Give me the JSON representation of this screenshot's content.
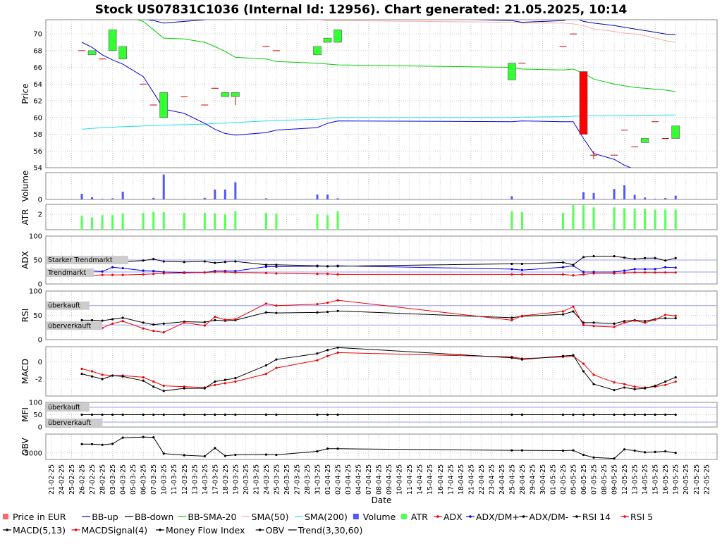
{
  "chart_data": {
    "type": "line",
    "title": "Stock US07831C1036 (Internal Id: 12956). Chart generated: 21.05.2025, 10:14",
    "xlabel": "Date",
    "x_ticks": [
      "21-02-25",
      "24-02-25",
      "25-02-25",
      "26-02-25",
      "27-02-25",
      "28-02-25",
      "03-03-25",
      "04-03-25",
      "05-03-25",
      "06-03-25",
      "07-03-25",
      "10-03-25",
      "11-03-25",
      "12-03-25",
      "13-03-25",
      "14-03-25",
      "17-03-25",
      "18-03-25",
      "19-03-25",
      "20-03-25",
      "21-03-25",
      "24-03-25",
      "25-03-25",
      "26-03-25",
      "27-03-25",
      "28-03-25",
      "31-03-25",
      "01-04-25",
      "02-04-25",
      "03-04-25",
      "04-04-25",
      "07-04-25",
      "08-04-25",
      "09-04-25",
      "10-04-25",
      "11-04-25",
      "14-04-25",
      "15-04-25",
      "16-04-25",
      "17-04-25",
      "18-04-25",
      "21-04-25",
      "22-04-25",
      "23-04-25",
      "24-04-25",
      "25-04-25",
      "28-04-25",
      "29-04-25",
      "30-04-25",
      "01-05-25",
      "02-05-25",
      "05-05-25",
      "06-05-25",
      "07-05-25",
      "08-05-25",
      "09-05-25",
      "12-05-25",
      "13-05-25",
      "14-05-25",
      "15-05-25",
      "16-05-25",
      "19-05-25",
      "20-05-25",
      "21-05-25",
      "22-05-25"
    ],
    "dates": [
      "26-02-25",
      "27-02-25",
      "28-02-25",
      "03-03-25",
      "04-03-25",
      "06-03-25",
      "07-03-25",
      "10-03-25",
      "12-03-25",
      "14-03-25",
      "17-03-25",
      "18-03-25",
      "19-03-25",
      "24-03-25",
      "25-03-25",
      "31-03-25",
      "01-04-25",
      "02-04-25",
      "25-04-25",
      "28-04-25",
      "02-05-25",
      "05-05-25",
      "06-05-25",
      "07-05-25",
      "09-05-25",
      "12-05-25",
      "13-05-25",
      "14-05-25",
      "15-05-25",
      "16-05-25",
      "19-05-25"
    ],
    "panels": {
      "price": {
        "ylabel": "Price",
        "ylim": [
          54,
          71.7
        ],
        "yticks": [
          54,
          56,
          58,
          60,
          62,
          64,
          66,
          68,
          70
        ],
        "open": [
          68.0,
          67.5,
          67.0,
          68.0,
          67.0,
          64.0,
          61.5,
          60.0,
          62.5,
          61.5,
          63.5,
          62.5,
          62.5,
          68.5,
          68.0,
          67.5,
          69.0,
          69.0,
          64.5,
          66.5,
          68.5,
          70.0,
          65.5,
          55.5,
          55.5,
          58.5,
          56.5,
          57.0,
          59.5,
          57.5,
          57.5
        ],
        "close": [
          68.0,
          68.0,
          67.0,
          70.5,
          68.5,
          64.0,
          61.5,
          63.0,
          62.5,
          61.5,
          63.5,
          63.0,
          63.0,
          68.5,
          68.0,
          68.5,
          69.5,
          70.5,
          66.5,
          66.5,
          68.5,
          70.0,
          58.0,
          55.5,
          55.5,
          58.5,
          56.5,
          57.5,
          59.5,
          57.5,
          59.0
        ],
        "high": [
          68.0,
          68.0,
          67.0,
          70.5,
          68.5,
          64.0,
          61.5,
          63.0,
          62.5,
          61.5,
          63.5,
          63.0,
          63.0,
          68.5,
          68.0,
          68.5,
          69.5,
          70.5,
          66.5,
          66.5,
          68.5,
          70.0,
          65.5,
          56.0,
          55.5,
          58.5,
          56.5,
          57.5,
          59.5,
          57.5,
          59.0
        ],
        "low": [
          68.0,
          67.5,
          67.0,
          68.0,
          67.0,
          64.0,
          61.5,
          60.0,
          62.5,
          61.5,
          63.5,
          62.5,
          61.5,
          68.5,
          68.0,
          67.5,
          69.0,
          69.0,
          64.5,
          66.5,
          68.5,
          70.0,
          58.0,
          55.0,
          55.5,
          58.5,
          56.5,
          57.0,
          59.5,
          57.5,
          57.5
        ],
        "bb_up": [
          69.0,
          68.4,
          67.5,
          66.9,
          66.4,
          64.9,
          63.0,
          61.0,
          60.5,
          59.3,
          58.6,
          58.1,
          57.9,
          58.2,
          58.5,
          58.8,
          59.3,
          59.6,
          59.5,
          59.6,
          59.5,
          59.5,
          57.5,
          55.7,
          55.0,
          54.3,
          53.8,
          53.5,
          53.3,
          53.2,
          53.1
        ],
        "bb_down": [
          72.8,
          72.6,
          72.4,
          72.2,
          72.0,
          71.8,
          71.6,
          71.3,
          71.5,
          71.7,
          71.9,
          72.0,
          72.0,
          72.1,
          72.3,
          72.2,
          72.0,
          72.2,
          71.6,
          71.4,
          71.6,
          72.0,
          71.5,
          71.3,
          71.0,
          70.8,
          70.6,
          70.4,
          70.2,
          70.0,
          69.9
        ],
        "bb_sma20": [
          73.5,
          73.2,
          72.9,
          72.6,
          72.2,
          71.5,
          70.5,
          69.5,
          69.4,
          69.0,
          68.5,
          67.9,
          67.2,
          67.0,
          66.7,
          66.5,
          66.4,
          66.3,
          66.0,
          65.8,
          65.7,
          65.8,
          65.3,
          64.6,
          64.0,
          63.8,
          63.6,
          63.5,
          63.4,
          63.3,
          63.1
        ],
        "sma50": [
          73.0,
          72.9,
          72.8,
          72.7,
          72.6,
          72.4,
          72.3,
          72.2,
          72.1,
          72.0,
          71.9,
          71.8,
          71.7,
          71.8,
          71.8,
          71.7,
          71.6,
          71.6,
          71.4,
          71.3,
          71.3,
          71.2,
          71.0,
          70.6,
          70.3,
          70.1,
          70.0,
          69.8,
          69.5,
          69.2,
          69.0
        ],
        "sma200": [
          58.6,
          58.7,
          58.8,
          58.85,
          58.9,
          59.0,
          59.05,
          59.1,
          59.15,
          59.2,
          59.3,
          59.35,
          59.4,
          59.6,
          59.65,
          59.8,
          59.9,
          60.0,
          60.0,
          60.05,
          60.1,
          60.15,
          60.2,
          60.2,
          60.2,
          60.25,
          60.25,
          60.25,
          60.28,
          60.3,
          60.3
        ]
      },
      "volume": {
        "ylabel": "Volume",
        "yticks": [
          0
        ],
        "values": [
          0.21,
          0.08,
          0.02,
          0.04,
          0.29,
          0.0,
          0.06,
          0.93,
          0.01,
          0.06,
          0.37,
          0.37,
          0.64,
          0.04,
          0.0,
          0.18,
          0.18,
          0.04,
          0.12,
          0.0,
          0.0,
          0.0,
          0.27,
          0.24,
          0.39,
          0.53,
          0.17,
          0.07,
          0.02,
          0.05,
          0.14
        ]
      },
      "atr": {
        "ylabel": "ATR",
        "yticks": [
          2
        ],
        "values": [
          1.8,
          1.6,
          1.9,
          1.9,
          2.1,
          2.2,
          2.3,
          2.3,
          2.2,
          2.2,
          2.1,
          2.0,
          2.4,
          2.2,
          2.1,
          2.0,
          1.9,
          2.4,
          2.4,
          2.3,
          2.2,
          3.2,
          3.2,
          2.9,
          2.9,
          2.8,
          2.7,
          2.7,
          2.6,
          2.6,
          2.6
        ]
      },
      "adx": {
        "ylabel": "ADX",
        "yticks": [
          0,
          50,
          100
        ],
        "annotations": [
          "Starker Trendmarkt",
          "Trendmarkt"
        ],
        "ref_lines": [
          50,
          25
        ],
        "adx": [
          17,
          18,
          19,
          19,
          19,
          20,
          21,
          22,
          23,
          24,
          25,
          25,
          24,
          23,
          22,
          21,
          21,
          20,
          20,
          20,
          20,
          18,
          20,
          22,
          22,
          23,
          24,
          24,
          24,
          24,
          24
        ],
        "dm_plus": [
          28,
          27,
          26,
          35,
          33,
          28,
          27,
          25,
          24,
          24,
          27,
          27,
          27,
          36,
          36,
          37,
          37,
          38,
          31,
          29,
          35,
          38,
          25,
          25,
          25,
          28,
          31,
          31,
          31,
          35,
          34
        ],
        "dm_minus": [
          44,
          46,
          45,
          45,
          46,
          49,
          52,
          47,
          46,
          47,
          44,
          46,
          47,
          40,
          40,
          38,
          37,
          37,
          42,
          42,
          45,
          40,
          56,
          58,
          58,
          55,
          52,
          54,
          54,
          49,
          54
        ]
      },
      "rsi": {
        "ylabel": "RSI",
        "yticks": [
          0,
          50,
          100
        ],
        "annotations": [
          "überkauft",
          "überverkauft"
        ],
        "ref_lines": [
          70,
          30
        ],
        "rsi14": [
          40,
          40,
          39,
          42,
          45,
          35,
          31,
          33,
          37,
          36,
          40,
          39,
          40,
          56,
          55,
          56,
          57,
          59,
          45,
          48,
          52,
          58,
          35,
          35,
          33,
          38,
          40,
          38,
          42,
          44,
          44
        ],
        "rsi5": [
          29,
          28,
          24,
          33,
          38,
          23,
          18,
          15,
          35,
          29,
          47,
          41,
          42,
          74,
          70,
          73,
          76,
          81,
          40,
          49,
          58,
          68,
          30,
          28,
          26,
          35,
          39,
          35,
          41,
          51,
          49
        ]
      },
      "macd": {
        "ylabel": "MACD",
        "yticks": [
          0,
          -2
        ],
        "macd": [
          -1.4,
          -1.7,
          -2.0,
          -1.6,
          -1.7,
          -2.2,
          -2.9,
          -3.4,
          -3.1,
          -3.1,
          -2.3,
          -2.1,
          -1.9,
          -0.4,
          0.3,
          1.0,
          1.4,
          1.7,
          0.5,
          0.3,
          0.7,
          0.8,
          -1.1,
          -2.6,
          -3.3,
          -3.0,
          -3.2,
          -3.1,
          -2.8,
          -2.3,
          -1.8
        ],
        "signal": [
          -0.8,
          -1.1,
          -1.5,
          -1.6,
          -1.6,
          -1.8,
          -2.3,
          -2.8,
          -2.9,
          -3.0,
          -2.7,
          -2.5,
          -2.3,
          -1.4,
          -0.7,
          0.2,
          0.7,
          1.1,
          0.6,
          0.4,
          0.6,
          0.7,
          -0.2,
          -1.5,
          -2.4,
          -2.6,
          -2.9,
          -3.0,
          -2.9,
          -2.7,
          -2.3
        ]
      },
      "mfi": {
        "ylabel": "MFI",
        "yticks": [
          0,
          50,
          100
        ],
        "annotations": [
          "überkauft",
          "überverkauft"
        ],
        "ref_lines": [
          80,
          20
        ],
        "values": [
          50,
          50,
          50,
          50,
          50,
          50,
          50,
          50,
          50,
          50,
          50,
          50,
          50,
          50,
          50,
          50,
          50,
          50,
          50,
          50,
          50,
          50,
          50,
          50,
          50,
          50,
          50,
          50,
          50,
          50,
          50
        ]
      },
      "obv": {
        "ylabel": "OBV",
        "yticks": [
          -5000
        ],
        "values": [
          -2300,
          -2300,
          -2500,
          -2200,
          -300,
          -100,
          -200,
          -5200,
          -5700,
          -6000,
          -3500,
          -5900,
          -5600,
          -5500,
          -5600,
          -4500,
          -3700,
          -3700,
          -4200,
          -4200,
          -4300,
          -4200,
          -5600,
          -6400,
          -6700,
          -3900,
          -4300,
          -4800,
          -4700,
          -4500,
          -5000
        ]
      }
    },
    "legend": [
      "Price in EUR",
      "BB-up",
      "BB-down",
      "BB-SMA-20",
      "SMA(50)",
      "SMA(200)",
      "Volume",
      "ATR",
      "ADX",
      "ADX/DM+",
      "ADX/DM-",
      "RSI 14",
      "RSI 5",
      "MACD(5,13)",
      "MACDSignal(4)",
      "Money Flow Index",
      "OBV",
      "Trend(3,30,60)"
    ],
    "colors": {
      "up": "#33ff33",
      "down": "#ff0000",
      "bb_up": "#0000dd",
      "bb_down": "#0000aa",
      "bb_sma20": "#00cc00",
      "sma50": "#ffaaaa",
      "sma200": "#22ddee",
      "volume": "#5555ff",
      "atr": "#55ff55",
      "red": "#ee0000",
      "blue": "#0000ee",
      "black": "#000000",
      "ref": "#9999ff",
      "grid": "#cccccc"
    }
  }
}
